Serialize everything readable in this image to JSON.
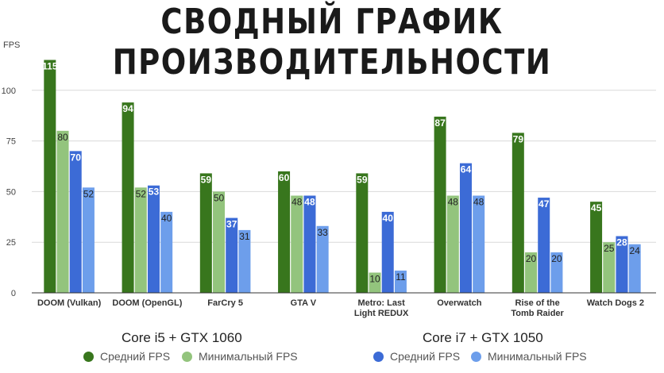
{
  "title": "СВОДНЫЙ ГРАФИК ПРОИЗВОДИТЕЛЬНОСТИ",
  "colors": {
    "i5_avg": "#38761d",
    "i5_min": "#93c47d",
    "i7_avg": "#3c6bd6",
    "i7_min": "#6d9eeb",
    "grid": "#d9d9d9",
    "axis": "#333333"
  },
  "legend": {
    "group1": {
      "title": "Core i5 + GTX 1060",
      "items": [
        "Средний FPS",
        "Минимальный FPS"
      ]
    },
    "group2": {
      "title": "Core i7 + GTX 1050",
      "items": [
        "Средний FPS",
        "Минимальный FPS"
      ]
    }
  },
  "chart_data": {
    "type": "bar",
    "title": "СВОДНЫЙ ГРАФИК ПРОИЗВОДИТЕЛЬНОСТИ",
    "ylabel": "FPS",
    "ylim": [
      0,
      125
    ],
    "yticks": [
      0,
      25,
      50,
      75,
      100
    ],
    "grid": true,
    "legend_position": "bottom",
    "categories": [
      [
        "DOOM (Vulkan)"
      ],
      [
        "DOOM (OpenGL)"
      ],
      [
        "FarCry 5"
      ],
      [
        "GTA V"
      ],
      [
        "Metro: Last",
        "Light REDUX"
      ],
      [
        "Overwatch"
      ],
      [
        "Rise of the",
        "Tomb Raider"
      ],
      [
        "Watch Dogs 2"
      ]
    ],
    "series": [
      {
        "name": "Core i5 + GTX 1060 — Средний FPS",
        "color": "#38761d",
        "values": [
          115,
          94,
          59,
          60,
          59,
          87,
          79,
          45
        ]
      },
      {
        "name": "Core i5 + GTX 1060 — Минимальный FPS",
        "color": "#93c47d",
        "values": [
          80,
          52,
          50,
          48,
          10,
          48,
          20,
          25
        ]
      },
      {
        "name": "Core i7 + GTX 1050 — Средний FPS",
        "color": "#3c6bd6",
        "values": [
          70,
          53,
          37,
          48,
          40,
          64,
          47,
          28
        ]
      },
      {
        "name": "Core i7 + GTX 1050 — Минимальный FPS",
        "color": "#6d9eeb",
        "values": [
          52,
          40,
          31,
          33,
          11,
          48,
          20,
          24
        ]
      }
    ]
  }
}
